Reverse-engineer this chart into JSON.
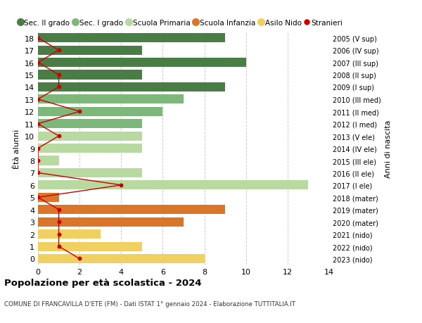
{
  "ages": [
    18,
    17,
    16,
    15,
    14,
    13,
    12,
    11,
    10,
    9,
    8,
    7,
    6,
    5,
    4,
    3,
    2,
    1,
    0
  ],
  "right_labels": [
    "2005 (V sup)",
    "2006 (IV sup)",
    "2007 (III sup)",
    "2008 (II sup)",
    "2009 (I sup)",
    "2010 (III med)",
    "2011 (II med)",
    "2012 (I med)",
    "2013 (V ele)",
    "2014 (IV ele)",
    "2015 (III ele)",
    "2016 (II ele)",
    "2017 (I ele)",
    "2018 (mater)",
    "2019 (mater)",
    "2020 (mater)",
    "2021 (nido)",
    "2022 (nido)",
    "2023 (nido)"
  ],
  "bar_values": [
    9,
    5,
    10,
    5,
    9,
    7,
    6,
    5,
    5,
    5,
    1,
    5,
    13,
    1,
    9,
    7,
    3,
    5,
    8
  ],
  "bar_colors": [
    "#4a7c45",
    "#4a7c45",
    "#4a7c45",
    "#4a7c45",
    "#4a7c45",
    "#7db87a",
    "#7db87a",
    "#7db87a",
    "#b8d9a0",
    "#b8d9a0",
    "#b8d9a0",
    "#b8d9a0",
    "#b8d9a0",
    "#d9762a",
    "#d9762a",
    "#d9762a",
    "#f0d060",
    "#f0d060",
    "#f0d060"
  ],
  "stranieri_x": [
    0,
    1,
    0,
    1,
    1,
    0,
    2,
    0,
    1,
    0,
    0,
    0,
    4,
    0,
    1,
    1,
    1,
    1,
    2
  ],
  "title": "Popolazione per età scolastica - 2024",
  "subtitle": "COMUNE DI FRANCAVILLA D'ETE (FM) - Dati ISTAT 1° gennaio 2024 - Elaborazione TUTTITALIA.IT",
  "ylabel_left": "Ètà alunni",
  "ylabel_right": "Anni di nascita",
  "xlim": [
    0,
    14
  ],
  "xticks": [
    0,
    2,
    4,
    6,
    8,
    10,
    12,
    14
  ],
  "legend_items": [
    {
      "label": "Sec. II grado",
      "color": "#4a7c45"
    },
    {
      "label": "Sec. I grado",
      "color": "#7db87a"
    },
    {
      "label": "Scuola Primaria",
      "color": "#b8d9a0"
    },
    {
      "label": "Scuola Infanzia",
      "color": "#d9762a"
    },
    {
      "label": "Asilo Nido",
      "color": "#f0d060"
    },
    {
      "label": "Stranieri",
      "color": "#cc0000"
    }
  ],
  "bg_color": "#ffffff",
  "grid_color": "#cccccc"
}
